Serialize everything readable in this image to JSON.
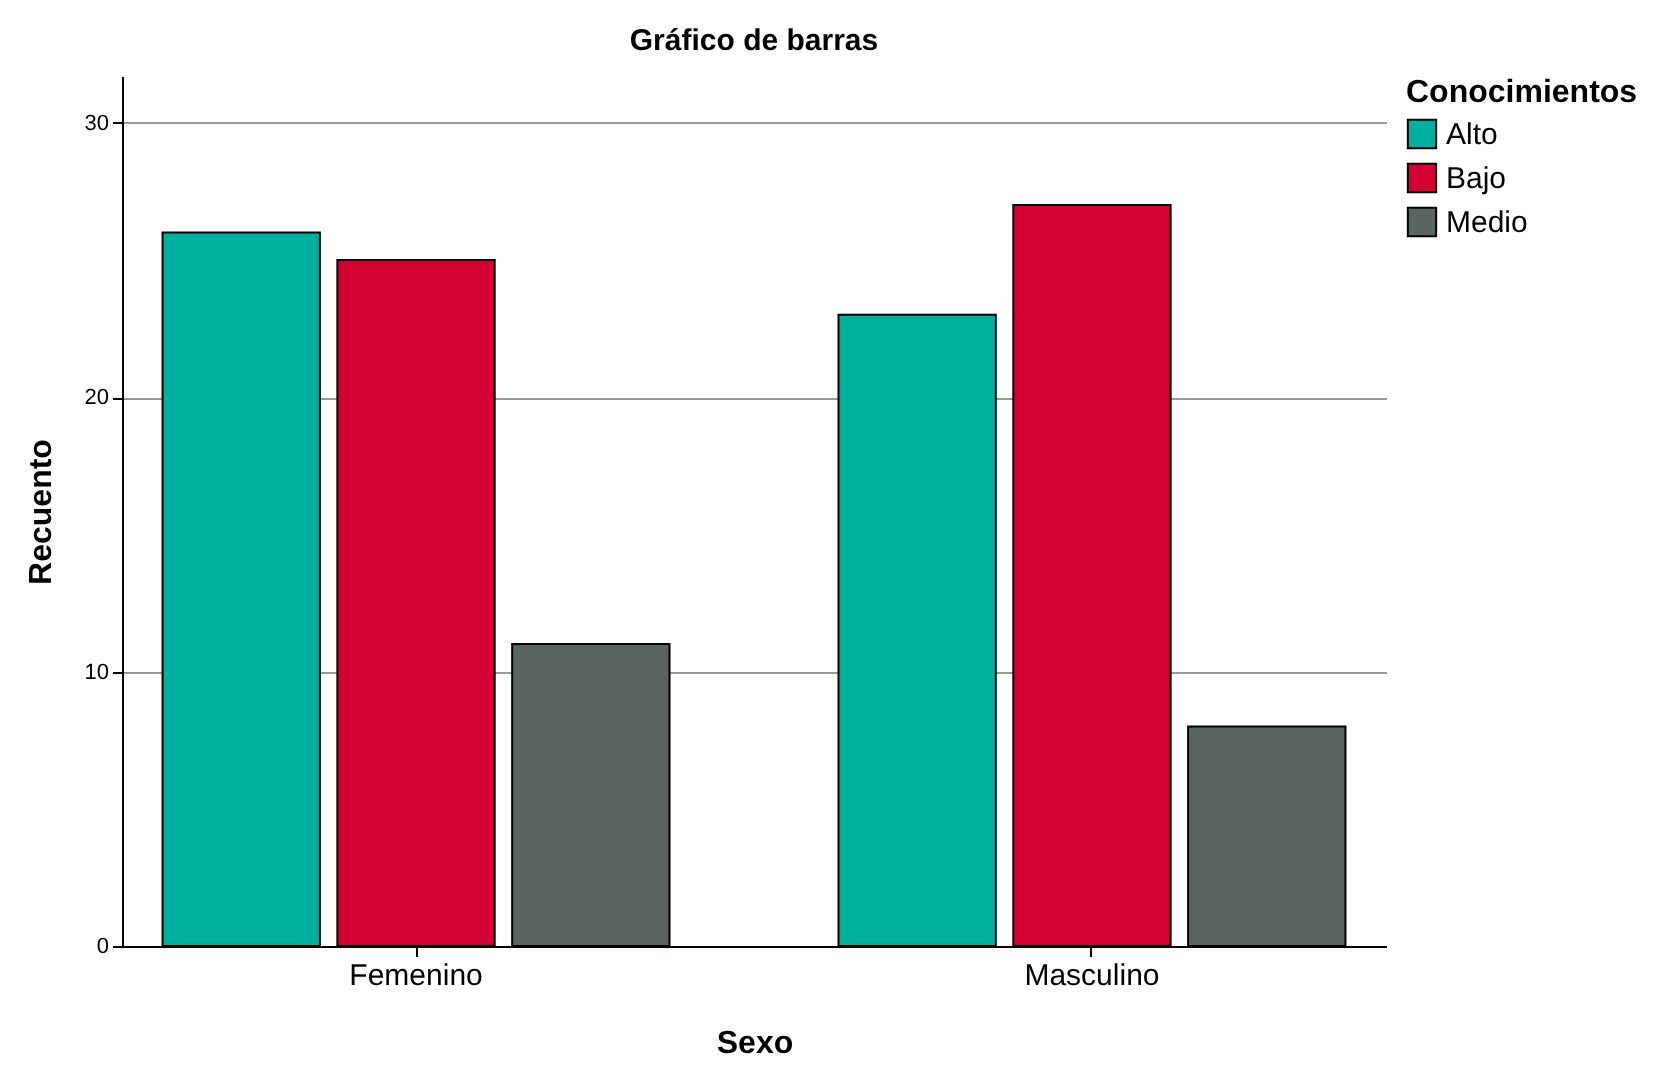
{
  "chart_data": {
    "type": "bar",
    "title": "Gráfico de barras",
    "xlabel": "Sexo",
    "ylabel": "Recuento",
    "legend_title": "Conocimientos",
    "categories": [
      "Femenino",
      "Masculino"
    ],
    "series": [
      {
        "name": "Alto",
        "color": "#00b09e",
        "values": [
          26,
          23
        ]
      },
      {
        "name": "Bajo",
        "color": "#d50032",
        "values": [
          25,
          27
        ]
      },
      {
        "name": "Medio",
        "color": "#5b6560",
        "values": [
          11,
          8
        ]
      }
    ],
    "ylim": [
      0,
      31.7
    ],
    "yticks": [
      0,
      10,
      20,
      30
    ],
    "grid": "y",
    "legend": "top right"
  }
}
